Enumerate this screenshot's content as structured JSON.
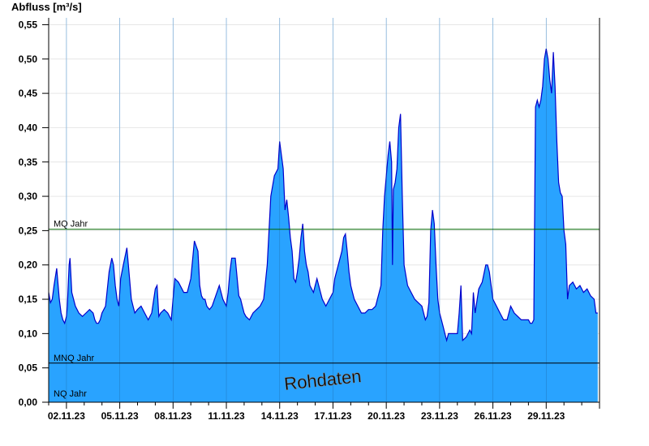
{
  "chart_data": {
    "type": "area",
    "ylabel": "Abfluss [m³/s]",
    "ylim": [
      0,
      0.56
    ],
    "y_ticks": [
      "0,00",
      "0,05",
      "0,10",
      "0,15",
      "0,20",
      "0,25",
      "0,30",
      "0,35",
      "0,40",
      "0,45",
      "0,50",
      "0,55"
    ],
    "x_start": "01.11.23",
    "x_end": "01.12.23",
    "x_ticks": [
      "02.11.23",
      "05.11.23",
      "08.11.23",
      "11.11.23",
      "14.11.23",
      "17.11.23",
      "20.11.23",
      "23.11.23",
      "26.11.23",
      "29.11.23"
    ],
    "grid": true,
    "watermark": "Rohdaten",
    "colors": {
      "fill": "#29a3ff",
      "line": "#0000cc",
      "mq": "#006600",
      "reference": "#000000"
    },
    "reference_lines": [
      {
        "label": "MQ Jahr",
        "value": 0.252
      },
      {
        "label": "MNQ Jahr",
        "value": 0.057
      },
      {
        "label": "NQ Jahr",
        "value": 0.0
      }
    ],
    "series": [
      {
        "x": [
          0,
          0.1,
          0.2,
          0.3,
          0.45,
          0.6,
          0.7,
          0.8,
          0.9,
          1.0,
          1.05,
          1.1,
          1.15,
          1.2,
          1.3,
          1.5,
          1.7,
          1.9,
          2.1,
          2.3,
          2.5,
          2.6,
          2.7,
          2.8,
          2.9,
          3.0,
          3.2,
          3.4,
          3.55,
          3.65,
          3.75,
          3.85,
          3.95,
          4.05,
          4.2,
          4.4,
          4.55,
          4.65,
          4.75,
          4.85,
          5.0,
          5.2,
          5.4,
          5.6,
          5.8,
          6.0,
          6.1,
          6.2,
          6.3,
          6.5,
          6.7,
          6.9,
          7.1,
          7.3,
          7.5,
          7.6,
          7.65,
          7.7,
          7.8,
          8.0,
          8.2,
          8.4,
          8.5,
          8.6,
          8.7,
          8.8,
          8.9,
          9.05,
          9.2,
          9.4,
          9.6,
          9.8,
          10.0,
          10.1,
          10.2,
          10.3,
          10.5,
          10.7,
          10.8,
          10.9,
          11.0,
          11.1,
          11.3,
          11.5,
          11.7,
          11.9,
          12.1,
          12.3,
          12.5,
          12.7,
          12.9,
          13.0,
          13.1,
          13.2,
          13.3,
          13.4,
          13.5,
          13.6,
          13.7,
          13.8,
          13.9,
          14.0,
          14.1,
          14.2,
          14.3,
          14.4,
          14.5,
          14.6,
          14.7,
          14.9,
          15.0,
          15.1,
          15.2,
          15.3,
          15.4,
          15.6,
          15.8,
          16.0,
          16.1,
          16.3,
          16.5,
          16.6,
          16.7,
          16.8,
          16.9,
          17.0,
          17.1,
          17.2,
          17.4,
          17.6,
          17.8,
          18.0,
          18.2,
          18.4,
          18.6,
          18.7,
          18.8,
          18.9,
          19.0,
          19.1,
          19.2,
          19.3,
          19.35,
          19.4,
          19.5,
          19.6,
          19.7,
          19.8,
          19.9,
          20.0,
          20.2,
          20.4,
          20.6,
          20.8,
          21.0,
          21.1,
          21.2,
          21.3,
          21.4,
          21.5,
          21.6,
          21.7,
          21.8,
          21.9,
          22.0,
          22.1,
          22.2,
          22.3,
          22.4,
          22.5,
          22.6,
          22.8,
          23.0,
          23.1,
          23.2,
          23.3,
          23.5,
          23.6,
          23.7,
          23.8,
          23.9,
          24.0,
          24.2,
          24.4,
          24.6,
          24.7,
          24.8,
          24.9,
          25.0,
          25.2,
          25.4,
          25.6,
          25.8,
          26.0,
          26.2,
          26.4,
          26.6,
          26.8,
          27.0,
          27.1,
          27.2,
          27.3,
          27.4,
          27.5,
          27.6,
          27.7,
          27.8,
          27.9,
          28.0,
          28.1,
          28.2,
          28.3,
          28.4,
          28.5,
          28.6,
          28.7,
          28.8,
          28.9,
          29.0,
          29.1,
          29.2,
          29.3,
          29.5,
          29.7,
          29.9,
          30.1,
          30.3,
          30.5,
          30.7,
          30.8,
          30.9
        ],
        "values": [
          0.16,
          0.145,
          0.15,
          0.17,
          0.195,
          0.15,
          0.13,
          0.12,
          0.115,
          0.125,
          0.14,
          0.17,
          0.2,
          0.21,
          0.16,
          0.14,
          0.13,
          0.125,
          0.13,
          0.135,
          0.13,
          0.12,
          0.115,
          0.115,
          0.12,
          0.13,
          0.14,
          0.19,
          0.21,
          0.2,
          0.17,
          0.15,
          0.14,
          0.18,
          0.2,
          0.225,
          0.18,
          0.15,
          0.14,
          0.13,
          0.135,
          0.14,
          0.13,
          0.12,
          0.13,
          0.165,
          0.17,
          0.125,
          0.13,
          0.135,
          0.13,
          0.12,
          0.18,
          0.175,
          0.165,
          0.16,
          0.16,
          0.16,
          0.16,
          0.18,
          0.235,
          0.22,
          0.17,
          0.155,
          0.15,
          0.15,
          0.14,
          0.135,
          0.14,
          0.155,
          0.17,
          0.15,
          0.14,
          0.16,
          0.19,
          0.21,
          0.21,
          0.155,
          0.15,
          0.14,
          0.13,
          0.125,
          0.12,
          0.13,
          0.135,
          0.14,
          0.15,
          0.2,
          0.3,
          0.33,
          0.34,
          0.38,
          0.36,
          0.34,
          0.28,
          0.295,
          0.27,
          0.24,
          0.22,
          0.18,
          0.175,
          0.19,
          0.21,
          0.24,
          0.26,
          0.22,
          0.2,
          0.19,
          0.17,
          0.16,
          0.17,
          0.18,
          0.17,
          0.16,
          0.15,
          0.14,
          0.15,
          0.16,
          0.18,
          0.2,
          0.22,
          0.24,
          0.245,
          0.22,
          0.19,
          0.17,
          0.16,
          0.15,
          0.14,
          0.13,
          0.13,
          0.135,
          0.135,
          0.14,
          0.16,
          0.17,
          0.25,
          0.3,
          0.33,
          0.36,
          0.38,
          0.35,
          0.2,
          0.31,
          0.32,
          0.34,
          0.4,
          0.42,
          0.3,
          0.2,
          0.17,
          0.16,
          0.15,
          0.145,
          0.14,
          0.13,
          0.12,
          0.125,
          0.145,
          0.25,
          0.28,
          0.26,
          0.2,
          0.15,
          0.13,
          0.12,
          0.11,
          0.1,
          0.09,
          0.1,
          0.1,
          0.1,
          0.1,
          0.13,
          0.17,
          0.09,
          0.095,
          0.1,
          0.105,
          0.1,
          0.16,
          0.13,
          0.165,
          0.175,
          0.2,
          0.2,
          0.19,
          0.17,
          0.15,
          0.14,
          0.13,
          0.12,
          0.12,
          0.14,
          0.13,
          0.125,
          0.12,
          0.12,
          0.12,
          0.115,
          0.115,
          0.12,
          0.43,
          0.44,
          0.43,
          0.44,
          0.46,
          0.5,
          0.515,
          0.5,
          0.47,
          0.45,
          0.51,
          0.46,
          0.38,
          0.32,
          0.305,
          0.3,
          0.25,
          0.23,
          0.15,
          0.17,
          0.175,
          0.165,
          0.17,
          0.16,
          0.165,
          0.155,
          0.15,
          0.13,
          0.13
        ]
      }
    ]
  }
}
